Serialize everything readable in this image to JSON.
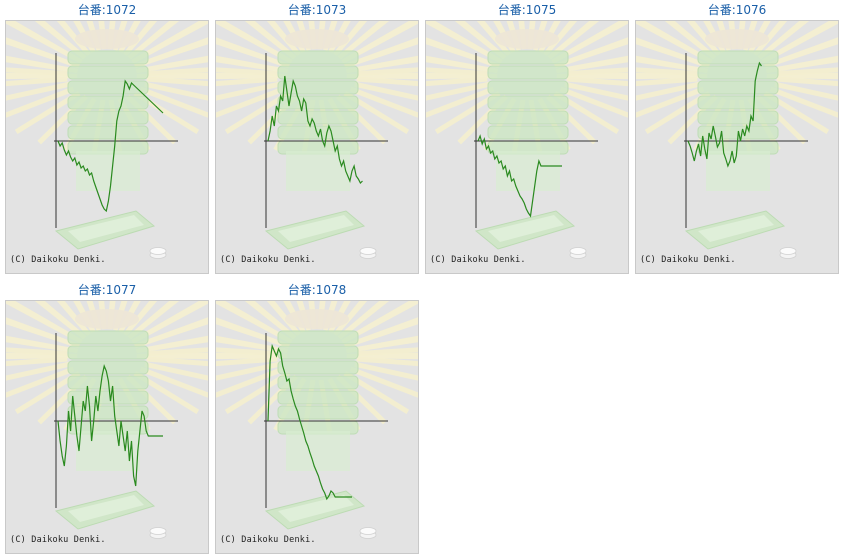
{
  "copyright_text": "(C) Daikoku Denki.",
  "colors": {
    "title": "#1a5fa8",
    "line": "#2a8a1f",
    "axis": "#333333",
    "background": "#e3e3e3"
  },
  "charts": [
    {
      "title": "台番:1072",
      "chart_data": {
        "type": "line",
        "x": [
          0,
          2,
          4,
          6,
          8,
          10,
          12,
          14,
          16,
          18,
          20,
          22,
          24,
          26,
          28,
          30,
          32,
          34,
          36,
          38,
          40,
          42,
          44,
          46,
          48,
          50,
          52,
          54,
          56,
          58,
          60,
          62,
          64,
          66,
          68,
          70,
          72,
          74,
          76,
          78,
          80,
          82,
          84,
          86,
          88,
          90,
          92,
          94,
          96,
          98,
          100
        ],
        "values": [
          0,
          -5,
          -2,
          -9,
          -14,
          -10,
          -16,
          -20,
          -17,
          -24,
          -21,
          -27,
          -25,
          -30,
          -28,
          -34,
          -32,
          -40,
          -46,
          -52,
          -58,
          -64,
          -68,
          -70,
          -60,
          -45,
          -25,
          -5,
          20,
          30,
          35,
          45,
          60,
          57,
          52,
          58,
          56,
          54,
          52,
          50,
          48,
          46,
          44,
          42,
          40,
          38,
          36,
          34,
          32,
          30,
          28
        ]
      }
    },
    {
      "title": "台番:1073",
      "chart_data": {
        "type": "line",
        "x": [
          0,
          2,
          4,
          6,
          8,
          10,
          12,
          14,
          16,
          18,
          20,
          22,
          24,
          26,
          28,
          30,
          32,
          34,
          36,
          38,
          40,
          42,
          44,
          46,
          48,
          50,
          52,
          54,
          56,
          58,
          60,
          62,
          64,
          66,
          68,
          70,
          72,
          74,
          76,
          78,
          80,
          82,
          84,
          86,
          88,
          90
        ],
        "values": [
          0,
          10,
          25,
          15,
          35,
          30,
          45,
          40,
          65,
          50,
          35,
          48,
          60,
          55,
          45,
          40,
          30,
          42,
          38,
          20,
          15,
          22,
          18,
          10,
          5,
          12,
          0,
          -5,
          8,
          15,
          10,
          0,
          -10,
          -5,
          -18,
          -25,
          -20,
          -30,
          -35,
          -40,
          -30,
          -25,
          -35,
          -38,
          -42,
          -40
        ]
      }
    },
    {
      "title": "台番:1075",
      "chart_data": {
        "type": "line",
        "x": [
          0,
          2,
          4,
          6,
          8,
          10,
          12,
          14,
          16,
          18,
          20,
          22,
          24,
          26,
          28,
          30,
          32,
          34,
          36,
          38,
          40,
          42,
          44,
          46,
          48,
          50,
          52,
          54,
          56,
          58,
          60,
          62,
          64,
          66,
          68,
          70,
          72,
          74,
          76,
          78,
          80
        ],
        "values": [
          0,
          5,
          -3,
          2,
          -8,
          -5,
          -12,
          -10,
          -18,
          -15,
          -22,
          -20,
          -28,
          -25,
          -35,
          -30,
          -40,
          -38,
          -45,
          -50,
          -55,
          -58,
          -62,
          -68,
          -72,
          -75,
          -60,
          -45,
          -30,
          -20,
          -25,
          -25,
          -25,
          -25,
          -25,
          -25,
          -25,
          -25,
          -25,
          -25,
          -25
        ]
      }
    },
    {
      "title": "台番:1076",
      "chart_data": {
        "type": "line",
        "x": [
          0,
          2,
          4,
          6,
          8,
          10,
          12,
          14,
          16,
          18,
          20,
          22,
          24,
          26,
          28,
          30,
          32,
          34,
          36,
          38,
          40,
          42,
          44,
          46,
          48,
          50,
          52,
          54,
          56,
          58,
          60,
          62,
          64,
          66,
          68,
          70
        ],
        "values": [
          0,
          -5,
          -12,
          -20,
          -10,
          -3,
          -15,
          5,
          -8,
          -18,
          8,
          2,
          15,
          5,
          -6,
          -2,
          10,
          -12,
          -18,
          -25,
          -20,
          -10,
          -22,
          -15,
          10,
          0,
          12,
          5,
          15,
          10,
          25,
          20,
          60,
          70,
          78,
          75
        ]
      }
    },
    {
      "title": "台番:1077",
      "chart_data": {
        "type": "line",
        "x": [
          0,
          2,
          4,
          6,
          8,
          10,
          12,
          14,
          16,
          18,
          20,
          22,
          24,
          26,
          28,
          30,
          32,
          34,
          36,
          38,
          40,
          42,
          44,
          46,
          48,
          50,
          52,
          54,
          56,
          58,
          60,
          62,
          64,
          66,
          68,
          70,
          72,
          74,
          76,
          78,
          80,
          82,
          84,
          86,
          88,
          90,
          92,
          94,
          96,
          98,
          100
        ],
        "values": [
          0,
          -20,
          -35,
          -45,
          -25,
          10,
          -10,
          25,
          5,
          -15,
          -30,
          -5,
          20,
          10,
          35,
          15,
          -20,
          0,
          25,
          10,
          30,
          45,
          55,
          50,
          40,
          20,
          35,
          5,
          -10,
          -25,
          0,
          -15,
          -30,
          -10,
          -40,
          -20,
          -55,
          -65,
          -30,
          -10,
          10,
          5,
          -10,
          -15,
          -15,
          -15,
          -15,
          -15,
          -15,
          -15,
          -15
        ]
      }
    },
    {
      "title": "台番:1078",
      "chart_data": {
        "type": "line",
        "x": [
          0,
          2,
          4,
          6,
          8,
          10,
          12,
          14,
          16,
          18,
          20,
          22,
          24,
          26,
          28,
          30,
          32,
          34,
          36,
          38,
          40,
          42,
          44,
          46,
          48,
          50,
          52,
          54,
          56,
          58,
          60,
          62,
          64,
          66,
          68,
          70,
          72,
          74,
          76,
          78,
          80
        ],
        "values": [
          0,
          60,
          75,
          70,
          65,
          72,
          68,
          55,
          48,
          40,
          42,
          30,
          22,
          15,
          10,
          2,
          -5,
          -12,
          -20,
          -25,
          -32,
          -38,
          -45,
          -50,
          -55,
          -62,
          -68,
          -72,
          -78,
          -75,
          -70,
          -72,
          -76,
          -76,
          -76,
          -76,
          -76,
          -76,
          -76,
          -76,
          -76
        ]
      }
    }
  ]
}
